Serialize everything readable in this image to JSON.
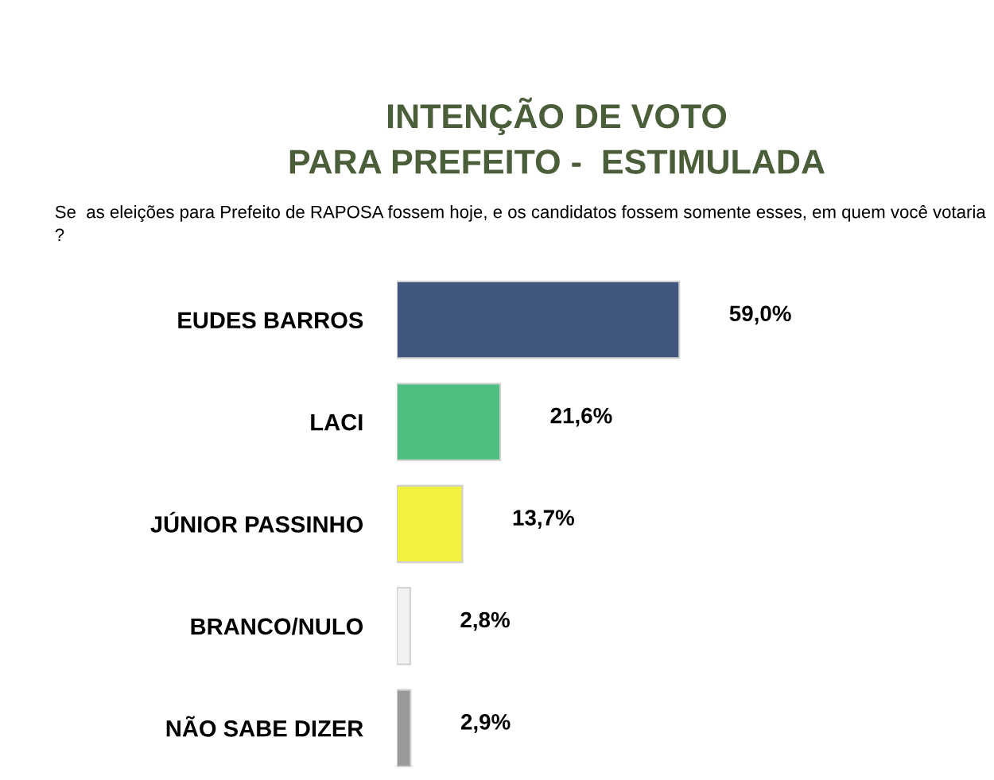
{
  "chart_data": {
    "type": "bar",
    "orientation": "horizontal",
    "title": "INTENÇÃO DE VOTO\nPARA PREFEITO -  ESTIMULADA",
    "subtitle": "Se  as eleições para Prefeito de RAPOSA fossem hoje, e os candidatos fossem somente esses, em quem você votaria ?",
    "categories": [
      "EUDES BARROS",
      "LACI",
      "JÚNIOR PASSINHO",
      "BRANCO/NULO",
      "NÃO SABE DIZER"
    ],
    "values": [
      59.0,
      21.6,
      13.7,
      2.8,
      2.9
    ],
    "colors": [
      "#41577f",
      "#4dbf80",
      "#f1f140",
      "#f2f2f2",
      "#999999"
    ],
    "value_labels": [
      "59,0%",
      "21,6%",
      "13,7%",
      "2,8%",
      "2,9%"
    ],
    "grid": false,
    "legend": false
  }
}
